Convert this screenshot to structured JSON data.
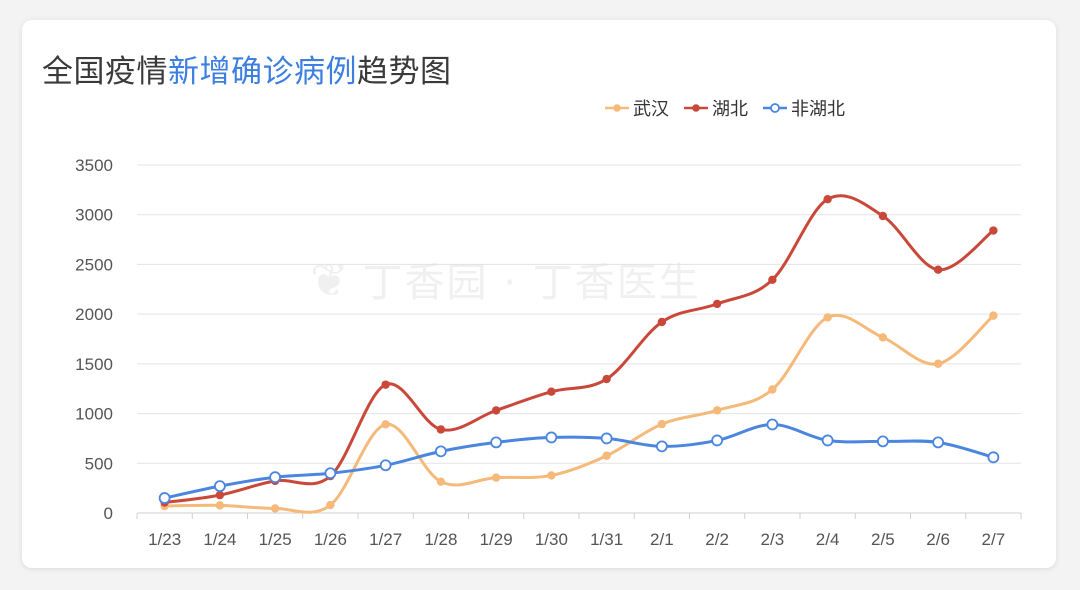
{
  "title": {
    "prefix": "全国疫情",
    "highlight": "新增确诊病例",
    "suffix": "趋势图"
  },
  "watermark": {
    "text": "丁香园 · 丁香医生",
    "logo_icon": "leaf-icon"
  },
  "colors": {
    "wuhan": "#f5b97a",
    "hubei": "#c9483a",
    "non_hubei": "#4a86e0",
    "grid": "#e3e3e3",
    "axis_text": "#555555"
  },
  "chart_data": {
    "type": "line",
    "title": "全国疫情新增确诊病例趋势图",
    "xlabel": "",
    "ylabel": "",
    "categories": [
      "1/23",
      "1/24",
      "1/25",
      "1/26",
      "1/27",
      "1/28",
      "1/29",
      "1/30",
      "1/31",
      "2/1",
      "2/2",
      "2/3",
      "2/4",
      "2/5",
      "2/6",
      "2/7"
    ],
    "y_ticks": [
      0,
      500,
      1000,
      1500,
      2000,
      2500,
      3000,
      3500
    ],
    "ylim": [
      0,
      3500
    ],
    "grid": true,
    "legend_position": "top-right",
    "series": [
      {
        "name": "武汉",
        "color": "#f5b97a",
        "marker": "filled",
        "values": [
          70,
          77,
          46,
          80,
          892,
          315,
          356,
          378,
          576,
          894,
          1033,
          1242,
          1967,
          1766,
          1501,
          1985
        ]
      },
      {
        "name": "湖北",
        "color": "#c9483a",
        "marker": "filled",
        "values": [
          105,
          180,
          323,
          371,
          1291,
          840,
          1032,
          1220,
          1347,
          1921,
          2103,
          2345,
          3156,
          2987,
          2447,
          2841
        ]
      },
      {
        "name": "非湖北",
        "color": "#4a86e0",
        "marker": "hollow",
        "values": [
          150,
          270,
          360,
          400,
          480,
          620,
          710,
          760,
          750,
          670,
          730,
          890,
          730,
          720,
          710,
          560
        ]
      }
    ]
  }
}
